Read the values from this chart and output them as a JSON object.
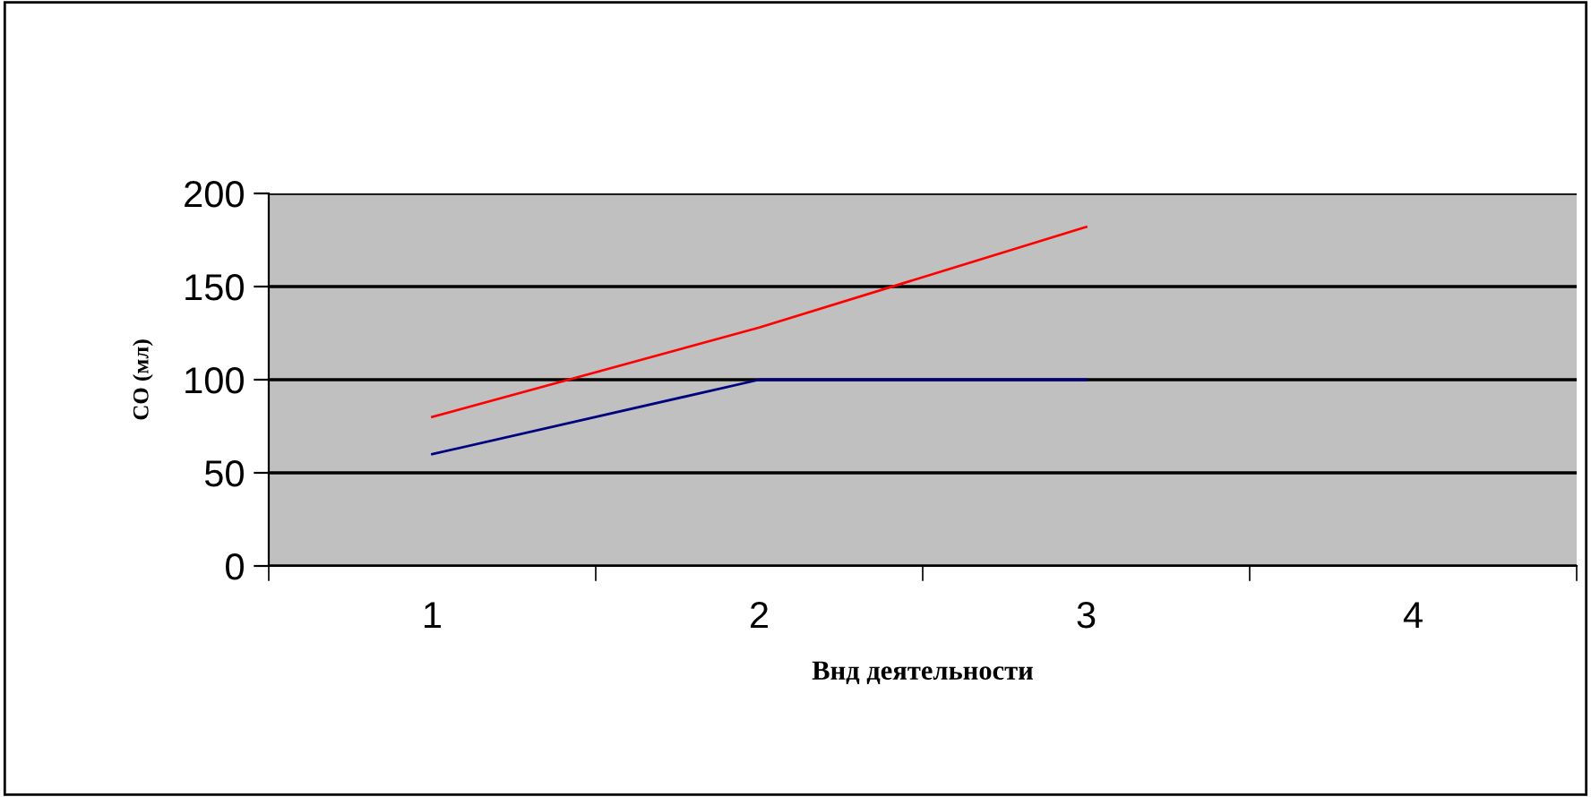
{
  "chart_data": {
    "type": "line",
    "categories": [
      "1",
      "2",
      "3",
      "4"
    ],
    "series": [
      {
        "color": "#ff0000",
        "values": [
          80,
          128,
          182,
          null
        ]
      },
      {
        "color": "#000080",
        "values": [
          60,
          100,
          100,
          null
        ]
      }
    ],
    "xlabel": "Внд деятельности",
    "ylabel": "СО (мл)",
    "ylim": [
      0,
      200
    ],
    "yticks": [
      0,
      50,
      100,
      150,
      200
    ],
    "grid": "y",
    "marker": "none",
    "line_style": "solid"
  }
}
